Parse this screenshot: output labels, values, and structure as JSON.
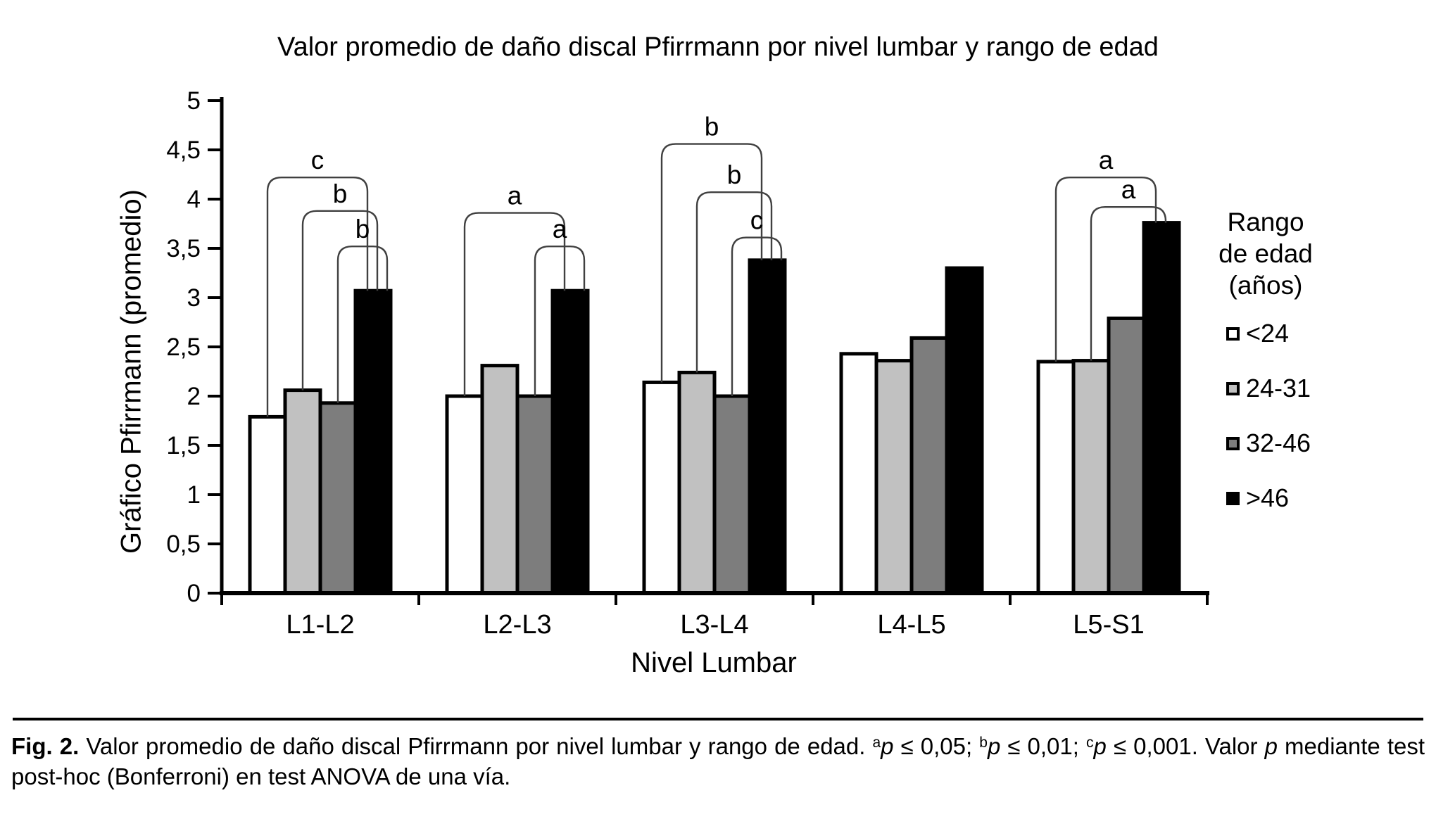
{
  "chart_data": {
    "type": "bar",
    "title": "Valor promedio de daño discal Pfirrmann por nivel lumbar y rango de edad",
    "xlabel": "Nivel Lumbar",
    "ylabel": "Gráfico Pfirrmann (promedio)",
    "categories": [
      "L1-L2",
      "L2-L3",
      "L3-L4",
      "L4-L5",
      "L5-S1"
    ],
    "series": [
      {
        "name": "<24",
        "color": "#ffffff",
        "values": [
          1.79,
          2.0,
          2.14,
          2.43,
          2.35
        ]
      },
      {
        "name": "24-31",
        "color": "#c1c1c1",
        "values": [
          2.06,
          2.31,
          2.24,
          2.36,
          2.36
        ]
      },
      {
        "name": "32-46",
        "color": "#7d7d7d",
        "values": [
          1.93,
          2.0,
          2.0,
          2.59,
          2.79
        ]
      },
      {
        "name": ">46",
        "color": "#000000",
        "values": [
          3.07,
          3.07,
          3.38,
          3.3,
          3.76
        ]
      }
    ],
    "ylim": [
      0,
      5
    ],
    "ytick_step": 0.5,
    "yticks": [
      "0",
      "0,5",
      "1",
      "1,5",
      "2",
      "2,5",
      "3",
      "3,5",
      "4",
      "4,5",
      "5"
    ],
    "grid": false,
    "legend": {
      "position": "right",
      "title_lines": [
        "Rango",
        "de edad",
        "(años)"
      ]
    },
    "significance_brackets": [
      {
        "category": "L1-L2",
        "from_series": "<24",
        "to_series": ">46",
        "height": 4.22,
        "label": "c"
      },
      {
        "category": "L1-L2",
        "from_series": "24-31",
        "to_series": ">46",
        "height": 3.88,
        "label": "b"
      },
      {
        "category": "L1-L2",
        "from_series": "32-46",
        "to_series": ">46",
        "height": 3.52,
        "label": "b"
      },
      {
        "category": "L2-L3",
        "from_series": "<24",
        "to_series": ">46",
        "height": 3.86,
        "label": "a"
      },
      {
        "category": "L2-L3",
        "from_series": "32-46",
        "to_series": ">46",
        "height": 3.52,
        "label": "a"
      },
      {
        "category": "L3-L4",
        "from_series": "<24",
        "to_series": ">46",
        "height": 4.56,
        "label": "b"
      },
      {
        "category": "L3-L4",
        "from_series": "24-31",
        "to_series": ">46",
        "height": 4.07,
        "label": "b"
      },
      {
        "category": "L3-L4",
        "from_series": "32-46",
        "to_series": ">46",
        "height": 3.61,
        "label": "c"
      },
      {
        "category": "L5-S1",
        "from_series": "<24",
        "to_series": ">46",
        "height": 4.22,
        "label": "a"
      },
      {
        "category": "L5-S1",
        "from_series": "24-31",
        "to_series": ">46",
        "height": 3.92,
        "label": "a"
      }
    ]
  },
  "caption": {
    "segments": [
      {
        "text": "Fig. 2.",
        "bold": true
      },
      {
        "text": " Valor promedio de daño discal Pfirrmann por nivel lumbar y rango de edad. "
      },
      {
        "text": "a",
        "sup": true
      },
      {
        "text": "p",
        "italic": true
      },
      {
        "text": " ≤ 0,05; "
      },
      {
        "text": "b",
        "sup": true
      },
      {
        "text": "p",
        "italic": true
      },
      {
        "text": " ≤ 0,01; "
      },
      {
        "text": "c",
        "sup": true
      },
      {
        "text": "p",
        "italic": true
      },
      {
        "text": " ≤ 0,001. Valor "
      },
      {
        "text": "p",
        "italic": true
      },
      {
        "text": " mediante test post-hoc (Bonferroni) en test ANOVA de una vía."
      }
    ]
  }
}
